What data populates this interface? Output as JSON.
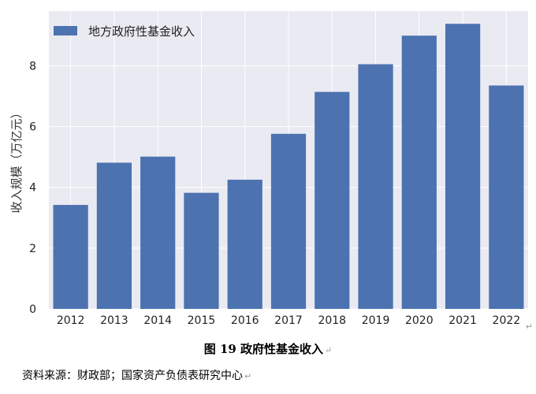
{
  "chart_data": {
    "type": "bar",
    "categories": [
      "2012",
      "2013",
      "2014",
      "2015",
      "2016",
      "2017",
      "2018",
      "2019",
      "2020",
      "2021",
      "2022"
    ],
    "series": [
      {
        "name": "地方政府性基金收入",
        "values": [
          3.42,
          4.81,
          5.01,
          3.82,
          4.25,
          5.76,
          7.14,
          8.05,
          8.99,
          9.38,
          7.35
        ]
      }
    ],
    "title": "",
    "xlabel": "",
    "ylabel": "收入规模（万亿元）",
    "ylim": [
      0,
      9.8
    ],
    "yticks": [
      0,
      2,
      4,
      6,
      8
    ],
    "grid": true,
    "legend": "top-left",
    "colors": {
      "bar": "#4c72b0",
      "plot_bg": "#eaeaf2",
      "grid": "#ffffff"
    }
  },
  "caption": {
    "text": "图 19  政府性基金收入",
    "mark": "↵"
  },
  "source": {
    "text": "资料来源：财政部；国家资产负债表研究中心",
    "mark": "↵"
  },
  "edge_mark": "↵"
}
